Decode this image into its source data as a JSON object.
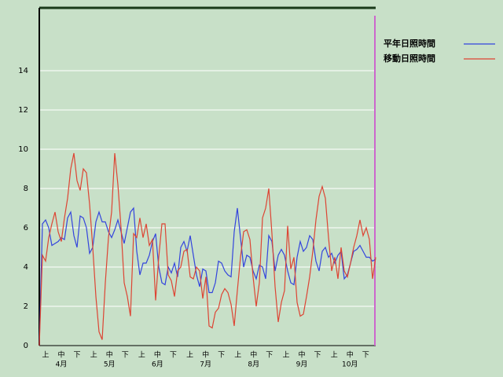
{
  "chart_data": {
    "type": "line",
    "ylim": [
      0,
      17.2
    ],
    "yticks": [
      0,
      2,
      4,
      6,
      8,
      10,
      12,
      14
    ],
    "grid": true,
    "x_period_labels": [
      "上",
      "中",
      "下",
      "上",
      "中",
      "下",
      "上",
      "中",
      "下",
      "上",
      "中",
      "下",
      "上",
      "中",
      "下",
      "上",
      "中",
      "下",
      "上",
      "中",
      "下"
    ],
    "x_month_labels": [
      "4月",
      "5月",
      "6月",
      "7月",
      "8月",
      "9月",
      "10月"
    ],
    "series": [
      {
        "name": "平年日照時間",
        "color": "#3344dd",
        "values": [
          0,
          6.2,
          6.4,
          6.0,
          5.1,
          5.2,
          5.3,
          5.5,
          5.4,
          6.5,
          6.8,
          5.6,
          5.0,
          6.6,
          6.5,
          6.0,
          4.7,
          5.0,
          6.3,
          6.8,
          6.3,
          6.3,
          5.8,
          5.5,
          5.9,
          6.4,
          5.8,
          5.2,
          6.0,
          6.8,
          7.0,
          4.8,
          3.6,
          4.2,
          4.2,
          4.6,
          5.3,
          5.7,
          4.0,
          3.2,
          3.1,
          4.0,
          3.7,
          4.2,
          3.5,
          5.0,
          5.3,
          4.8,
          5.6,
          4.6,
          3.6,
          3.0,
          3.9,
          3.8,
          2.7,
          2.7,
          3.2,
          4.3,
          4.2,
          3.8,
          3.6,
          3.5,
          5.8,
          7.0,
          5.5,
          4.0,
          4.6,
          4.5,
          3.8,
          3.4,
          4.1,
          4.0,
          3.4,
          5.6,
          5.3,
          3.8,
          4.6,
          4.9,
          4.6,
          3.8,
          3.2,
          3.1,
          4.5,
          5.3,
          4.8,
          5.0,
          5.6,
          5.4,
          4.3,
          3.8,
          4.8,
          5.0,
          4.5,
          4.7,
          4.2,
          4.6,
          4.8,
          3.4,
          3.6,
          4.2,
          4.8,
          4.9,
          5.1,
          4.8,
          4.5,
          4.5,
          4.3,
          4.4
        ]
      },
      {
        "name": "移動日照時間",
        "color": "#dd4433",
        "values": [
          0,
          4.6,
          4.3,
          5.5,
          6.2,
          6.8,
          5.8,
          5.3,
          6.5,
          7.5,
          9.0,
          9.8,
          8.4,
          7.9,
          9.0,
          8.8,
          7.2,
          5.0,
          2.5,
          0.7,
          0.3,
          3.2,
          5.5,
          6.8,
          9.8,
          8.2,
          6.0,
          3.2,
          2.5,
          1.5,
          5.7,
          5.5,
          6.5,
          5.5,
          6.2,
          5.1,
          5.4,
          2.3,
          4.5,
          6.2,
          6.2,
          3.6,
          3.3,
          2.5,
          3.8,
          4.0,
          4.8,
          4.9,
          3.5,
          3.4,
          4.0,
          3.8,
          2.4,
          3.5,
          1.0,
          0.9,
          1.7,
          1.9,
          2.6,
          2.9,
          2.7,
          2.1,
          1.0,
          2.8,
          4.5,
          5.8,
          5.9,
          5.4,
          3.5,
          2.0,
          3.2,
          6.5,
          7.0,
          8.0,
          5.7,
          3.0,
          1.2,
          2.2,
          2.8,
          6.1,
          3.9,
          4.5,
          2.2,
          1.5,
          1.6,
          2.5,
          3.5,
          4.8,
          6.4,
          7.6,
          8.1,
          7.5,
          5.5,
          3.8,
          4.5,
          3.4,
          5.0,
          3.8,
          3.5,
          4.2,
          5.0,
          5.6,
          6.4,
          5.6,
          6.0,
          5.4,
          3.4,
          4.5
        ]
      }
    ]
  }
}
